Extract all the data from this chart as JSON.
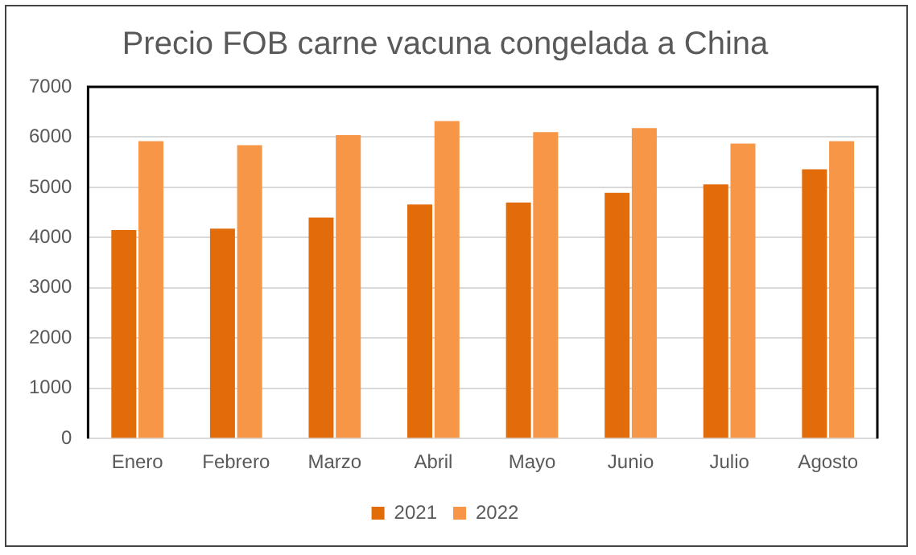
{
  "chart_data": {
    "type": "bar",
    "title": "Precio FOB carne vacuna congelada a China",
    "categories": [
      "Enero",
      "Febrero",
      "Marzo",
      "Abril",
      "Mayo",
      "Junio",
      "Julio",
      "Agosto"
    ],
    "series": [
      {
        "name": "2021",
        "color": "#e36c0a",
        "values": [
          4150,
          4180,
          4400,
          4660,
          4700,
          4890,
          5060,
          5360
        ]
      },
      {
        "name": "2022",
        "color": "#f79646",
        "values": [
          5920,
          5840,
          6040,
          6320,
          6100,
          6180,
          5870,
          5920
        ]
      }
    ],
    "ylim": [
      0,
      7000
    ],
    "yticks": [
      0,
      1000,
      2000,
      3000,
      4000,
      5000,
      6000,
      7000
    ],
    "grid": "y",
    "legend": "bottom"
  }
}
